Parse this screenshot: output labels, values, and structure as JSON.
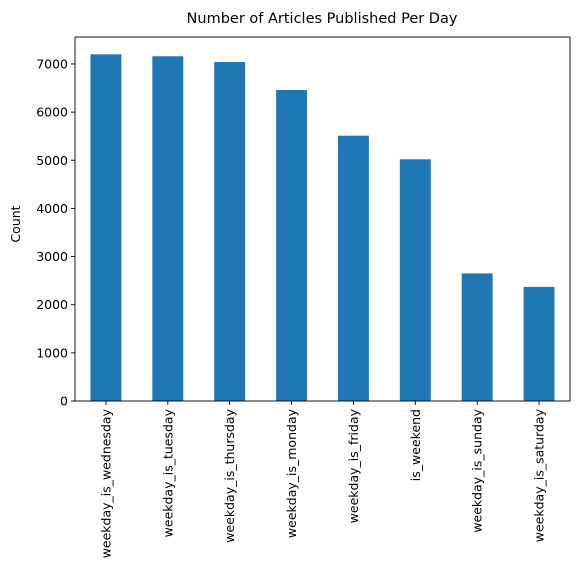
{
  "chart_data": {
    "type": "bar",
    "title": "Number of Articles Published Per Day",
    "xlabel": "",
    "ylabel": "Count",
    "categories": [
      "weekday_is_wednesday",
      "weekday_is_tuesday",
      "weekday_is_thursday",
      "weekday_is_monday",
      "weekday_is_friday",
      "is_weekend",
      "weekday_is_sunday",
      "weekday_is_saturday"
    ],
    "values": [
      7200,
      7160,
      7040,
      6460,
      5510,
      5020,
      2650,
      2370
    ],
    "ylim": [
      0,
      7560
    ],
    "yticks": [
      0,
      1000,
      2000,
      3000,
      4000,
      5000,
      6000,
      7000
    ],
    "grid": false,
    "colors": {
      "bar": "#1f77b4",
      "axis": "#000000",
      "background": "#ffffff"
    }
  }
}
